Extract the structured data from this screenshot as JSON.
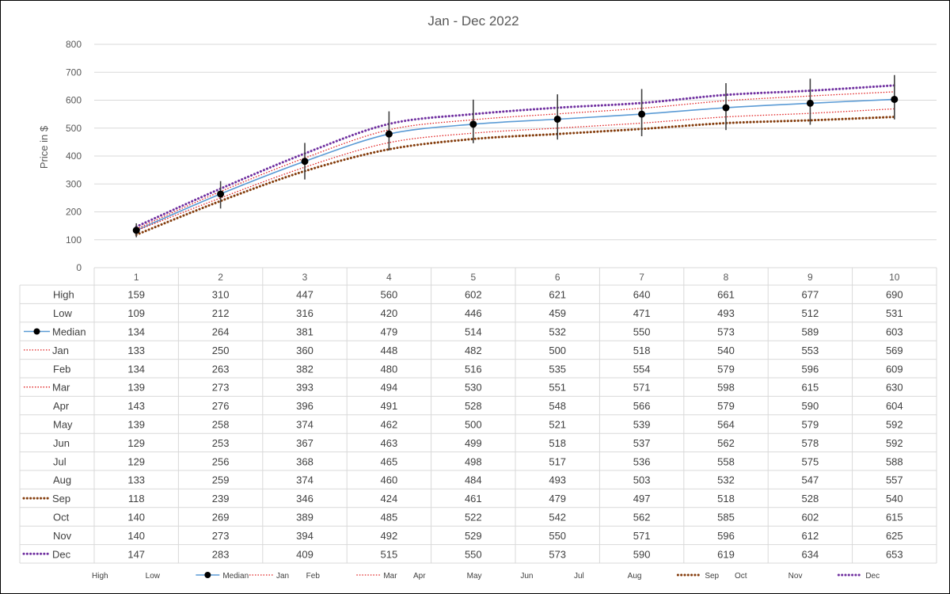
{
  "chart_data": {
    "type": "line",
    "title": "Jan - Dec 2022",
    "ylabel": "Price in $",
    "xlabel": "",
    "ylim": [
      0,
      800
    ],
    "yticks": [
      0,
      100,
      200,
      300,
      400,
      500,
      600,
      700,
      800
    ],
    "categories": [
      "1",
      "2",
      "3",
      "4",
      "5",
      "6",
      "7",
      "8",
      "9",
      "10"
    ],
    "grid": true,
    "legend_placement": "bottom",
    "series": [
      {
        "name": "High",
        "values": [
          159,
          310,
          447,
          560,
          602,
          621,
          640,
          661,
          677,
          690
        ],
        "style": "none",
        "color": ""
      },
      {
        "name": "Low",
        "values": [
          109,
          212,
          316,
          420,
          446,
          459,
          471,
          493,
          512,
          531
        ],
        "style": "none",
        "color": ""
      },
      {
        "name": "Median",
        "values": [
          134,
          264,
          381,
          479,
          514,
          532,
          550,
          573,
          589,
          603
        ],
        "style": "solid",
        "color": "#5B9BD5"
      },
      {
        "name": "Jan",
        "values": [
          133,
          250,
          360,
          448,
          482,
          500,
          518,
          540,
          553,
          569
        ],
        "style": "dotted",
        "color": "#E02020"
      },
      {
        "name": "Feb",
        "values": [
          134,
          263,
          382,
          480,
          516,
          535,
          554,
          579,
          596,
          609
        ],
        "style": "none",
        "color": ""
      },
      {
        "name": "Mar",
        "values": [
          139,
          273,
          393,
          494,
          530,
          551,
          571,
          598,
          615,
          630
        ],
        "style": "dotted",
        "color": "#E02020"
      },
      {
        "name": "Apr",
        "values": [
          143,
          276,
          396,
          491,
          528,
          548,
          566,
          579,
          590,
          604
        ],
        "style": "none",
        "color": ""
      },
      {
        "name": "May",
        "values": [
          139,
          258,
          374,
          462,
          500,
          521,
          539,
          564,
          579,
          592
        ],
        "style": "none",
        "color": ""
      },
      {
        "name": "Jun",
        "values": [
          129,
          253,
          367,
          463,
          499,
          518,
          537,
          562,
          578,
          592
        ],
        "style": "none",
        "color": ""
      },
      {
        "name": "Jul",
        "values": [
          129,
          256,
          368,
          465,
          498,
          517,
          536,
          558,
          575,
          588
        ],
        "style": "none",
        "color": ""
      },
      {
        "name": "Aug",
        "values": [
          133,
          259,
          374,
          460,
          484,
          493,
          503,
          532,
          547,
          557
        ],
        "style": "none",
        "color": ""
      },
      {
        "name": "Sep",
        "values": [
          118,
          239,
          346,
          424,
          461,
          479,
          497,
          518,
          528,
          540
        ],
        "style": "thickdot",
        "color": "#843C0C"
      },
      {
        "name": "Oct",
        "values": [
          140,
          269,
          389,
          485,
          522,
          542,
          562,
          585,
          602,
          615
        ],
        "style": "none",
        "color": ""
      },
      {
        "name": "Nov",
        "values": [
          140,
          273,
          394,
          492,
          529,
          550,
          571,
          596,
          612,
          625
        ],
        "style": "none",
        "color": ""
      },
      {
        "name": "Dec",
        "values": [
          147,
          283,
          409,
          515,
          550,
          573,
          590,
          619,
          634,
          653
        ],
        "style": "thickdot",
        "color": "#7030A0"
      }
    ],
    "error_bars": {
      "upper_series": "High",
      "lower_series": "Low",
      "center_series": "Median",
      "color": "#404040"
    }
  }
}
